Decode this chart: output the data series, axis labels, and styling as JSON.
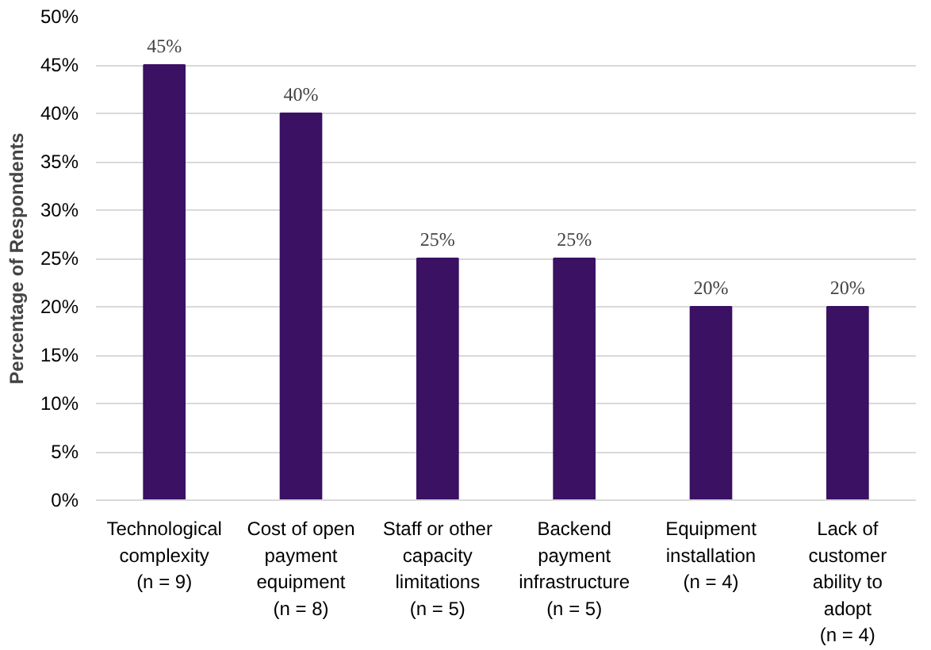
{
  "chart_data": {
    "type": "bar",
    "ylabel": "Percentage of Respondents",
    "categories": [
      "Technological\ncomplexity\n(n = 9)",
      "Cost of open\npayment\nequipment\n(n = 8)",
      "Staff or other\ncapacity\nlimitations\n(n = 5)",
      "Backend\npayment\ninfrastructure\n(n = 5)",
      "Equipment\ninstallation\n(n = 4)",
      "Lack of\ncustomer\nability to\nadopt\n(n = 4)"
    ],
    "values": [
      45,
      40,
      25,
      25,
      20,
      20
    ],
    "value_labels": [
      "45%",
      "40%",
      "25%",
      "25%",
      "20%",
      "20%"
    ],
    "color": "#3a1163",
    "ylim": [
      0,
      50
    ],
    "yticks": [
      {
        "value": 0,
        "label": "0%"
      },
      {
        "value": 5,
        "label": "5%"
      },
      {
        "value": 10,
        "label": "10%"
      },
      {
        "value": 15,
        "label": "15%"
      },
      {
        "value": 20,
        "label": "20%"
      },
      {
        "value": 25,
        "label": "25%"
      },
      {
        "value": 30,
        "label": "30%"
      },
      {
        "value": 35,
        "label": "35%"
      },
      {
        "value": 40,
        "label": "40%"
      },
      {
        "value": 45,
        "label": "45%"
      },
      {
        "value": 50,
        "label": "50%"
      }
    ],
    "grid": "y"
  }
}
